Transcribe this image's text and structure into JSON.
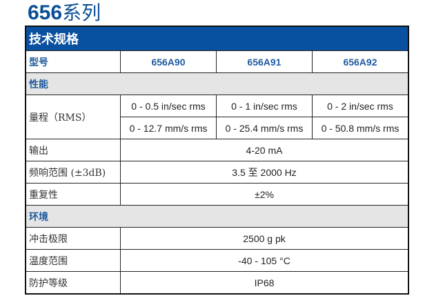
{
  "title": {
    "number": "656",
    "suffix": "系列"
  },
  "header": "技术规格",
  "model": {
    "label": "型号",
    "values": [
      "656A90",
      "656A91",
      "656A92"
    ]
  },
  "sections": [
    {
      "title": "性能"
    },
    {
      "title": "环境"
    }
  ],
  "range": {
    "label": "量程（RMS）",
    "imperial": [
      "0 - 0.5 in/sec rms",
      "0 - 1 in/sec rms",
      "0 - 2 in/sec rms"
    ],
    "metric": [
      "0 - 12.7 mm/s rms",
      "0 - 25.4 mm/s rms",
      "0 - 50.8 mm/s rms"
    ]
  },
  "performance": [
    {
      "label": "输出",
      "value": "4-20 mA"
    },
    {
      "label": "频响范围 (±3dB)",
      "value": "3.5 至 2000 Hz"
    },
    {
      "label": "重复性",
      "value": "±2%"
    }
  ],
  "environment": [
    {
      "label": "冲击极限",
      "value": "2500 g pk"
    },
    {
      "label": "温度范围",
      "value": "-40 - 105 °C"
    },
    {
      "label": "防护等级",
      "value": "IP68"
    }
  ],
  "colors": {
    "header_bg": "#0a50a0",
    "section_bg": "#e5e5e5",
    "accent_text": "#1d5a9e"
  }
}
